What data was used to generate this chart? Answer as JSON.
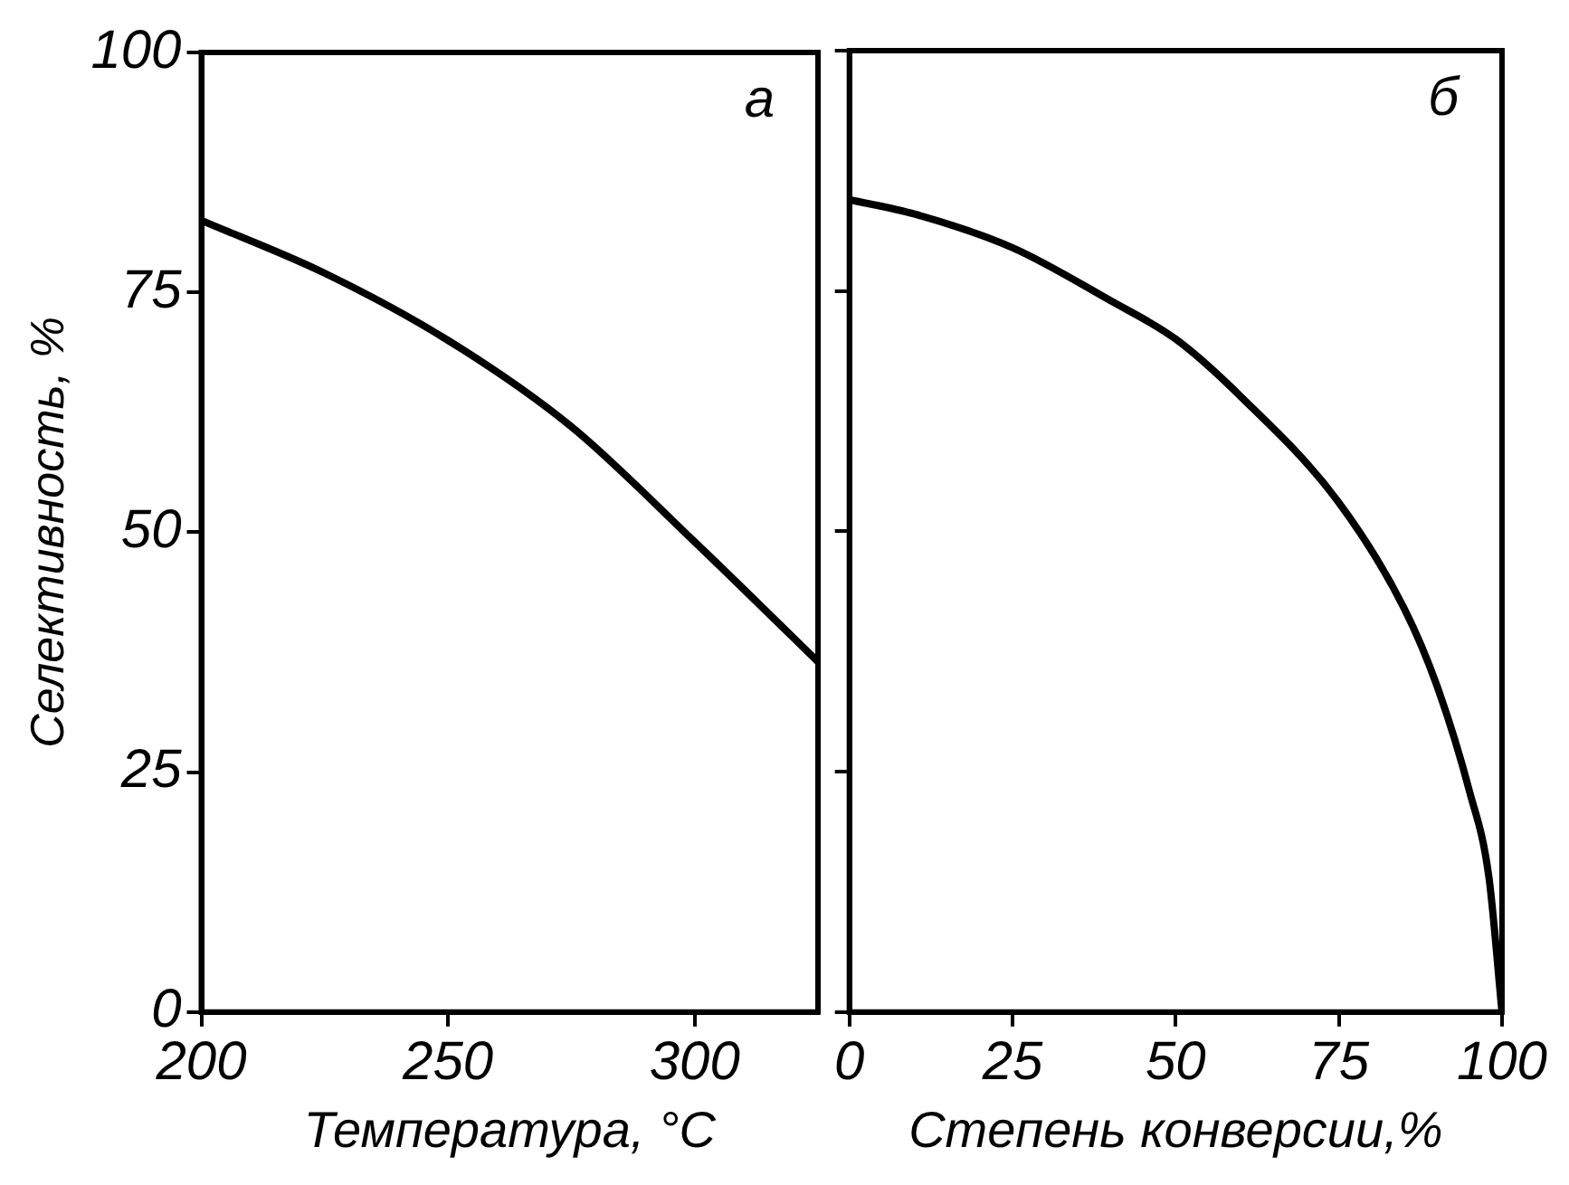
{
  "chart_data": [
    {
      "type": "line",
      "ylabel": "Селективность, %",
      "xlabel": "Температура, °C",
      "annotations": [
        "а"
      ],
      "x": [
        200,
        225,
        250,
        275,
        300,
        325
      ],
      "series": [
        {
          "color": "#000000",
          "values": [
            82.5,
            77,
            70,
            61,
            49,
            36.5
          ]
        }
      ],
      "xlim": [
        200,
        325
      ],
      "xticks": [
        200,
        250,
        300
      ],
      "ylim": [
        0,
        100
      ],
      "yticks": [
        0,
        25,
        50,
        75,
        100
      ],
      "grid": false,
      "legend": false,
      "marker": "none",
      "line_style": "solid"
    },
    {
      "type": "line",
      "xlabel": "Степень конверсии,%",
      "annotations": [
        "б"
      ],
      "x": [
        0,
        10,
        25,
        40,
        50,
        60,
        75,
        85,
        90,
        95,
        98,
        100
      ],
      "series": [
        {
          "color": "#000000",
          "values": [
            84.5,
            83,
            79.5,
            74,
            70,
            64,
            53,
            42,
            34,
            23,
            14,
            0
          ]
        }
      ],
      "xlim": [
        0,
        100
      ],
      "xticks": [
        0,
        25,
        50,
        75,
        100
      ],
      "ylim": [
        0,
        100
      ],
      "yticks": [
        0,
        25,
        50,
        75,
        100
      ],
      "tick_labels": "x",
      "grid": false,
      "legend": false,
      "marker": "none",
      "line_style": "solid"
    }
  ]
}
